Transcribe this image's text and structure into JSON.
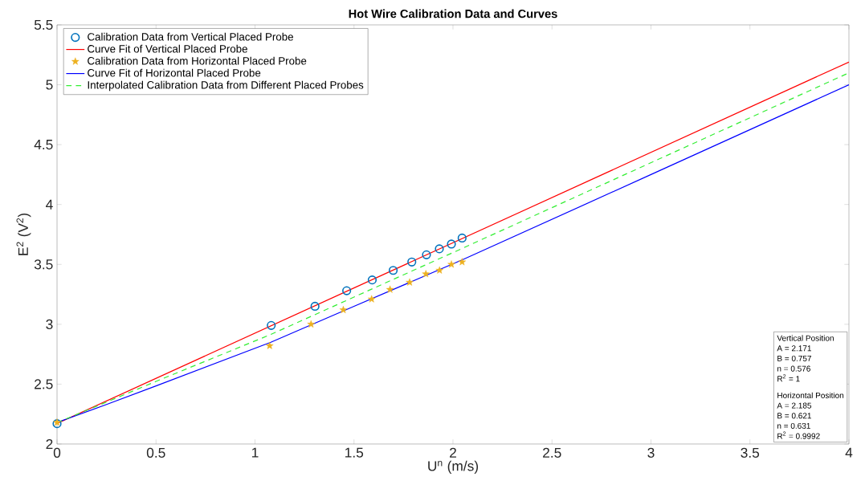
{
  "chart_data": {
    "type": "line",
    "title": "Hot Wire Calibration Data and Curves",
    "xlabel": "U$^{n}$ (m/s)",
    "ylabel": "E$^{2}$ (V$^{2}$)",
    "xlim": [
      0,
      4
    ],
    "ylim": [
      2,
      5.5
    ],
    "xticks": [
      0,
      0.5,
      1,
      1.5,
      2,
      2.5,
      3,
      3.5,
      4
    ],
    "yticks": [
      2,
      2.5,
      3,
      3.5,
      4,
      4.5,
      5,
      5.5
    ],
    "grid": false,
    "legend": "top left",
    "series": [
      {
        "name": "Calibration Data from Vertical Placed Probe",
        "type": "scatter",
        "marker": "circle",
        "color": "#0072bd",
        "x": [
          0,
          1.082,
          1.303,
          1.463,
          1.592,
          1.698,
          1.792,
          1.866,
          1.931,
          1.992,
          2.046
        ],
        "values": [
          2.17,
          2.99,
          3.15,
          3.28,
          3.37,
          3.45,
          3.52,
          3.58,
          3.63,
          3.67,
          3.72
        ]
      },
      {
        "name": "Curve Fit of Vertical Placed Probe",
        "line_style": "solid",
        "color": "#ff0000",
        "x": [
          0,
          4
        ],
        "values": [
          2.171,
          5.19
        ]
      },
      {
        "name": "Calibration Data from Horizontal Placed Probe",
        "type": "scatter",
        "marker": "star",
        "color": "#edb120",
        "x": [
          0,
          1.074,
          1.283,
          1.446,
          1.589,
          1.682,
          1.781,
          1.863,
          1.932,
          1.992,
          2.046
        ],
        "values": [
          2.18,
          2.82,
          3.0,
          3.12,
          3.21,
          3.29,
          3.35,
          3.42,
          3.45,
          3.5,
          3.52
        ]
      },
      {
        "name": "Curve Fit of Horizontal Placed Probe",
        "line_style": "solid",
        "color": "#0000ff",
        "x": [
          0,
          0.25,
          0.5,
          1.08,
          1.5,
          2.05,
          3,
          4
        ],
        "values": [
          2.18,
          2.33,
          2.485,
          2.85,
          3.15,
          3.54,
          4.25,
          5.0
        ]
      },
      {
        "name": "Interpolated Calibration Data from Different Placed Probes",
        "line_style": "dashed",
        "color": "#33ee33",
        "x": [
          0,
          0.5,
          1.08,
          2.05,
          4
        ],
        "values": [
          2.178,
          2.523,
          2.915,
          3.636,
          5.1
        ]
      }
    ],
    "annotations": [
      "Vertical Position",
      "A = 2.171",
      "B = 0.757",
      "n = 0.576",
      "R$^{2}$ = 1",
      "Horizontal Position",
      "A = 2.185",
      "B = 0.621",
      "n = 0.631",
      "R$^{2}$ = 0.9992"
    ]
  }
}
